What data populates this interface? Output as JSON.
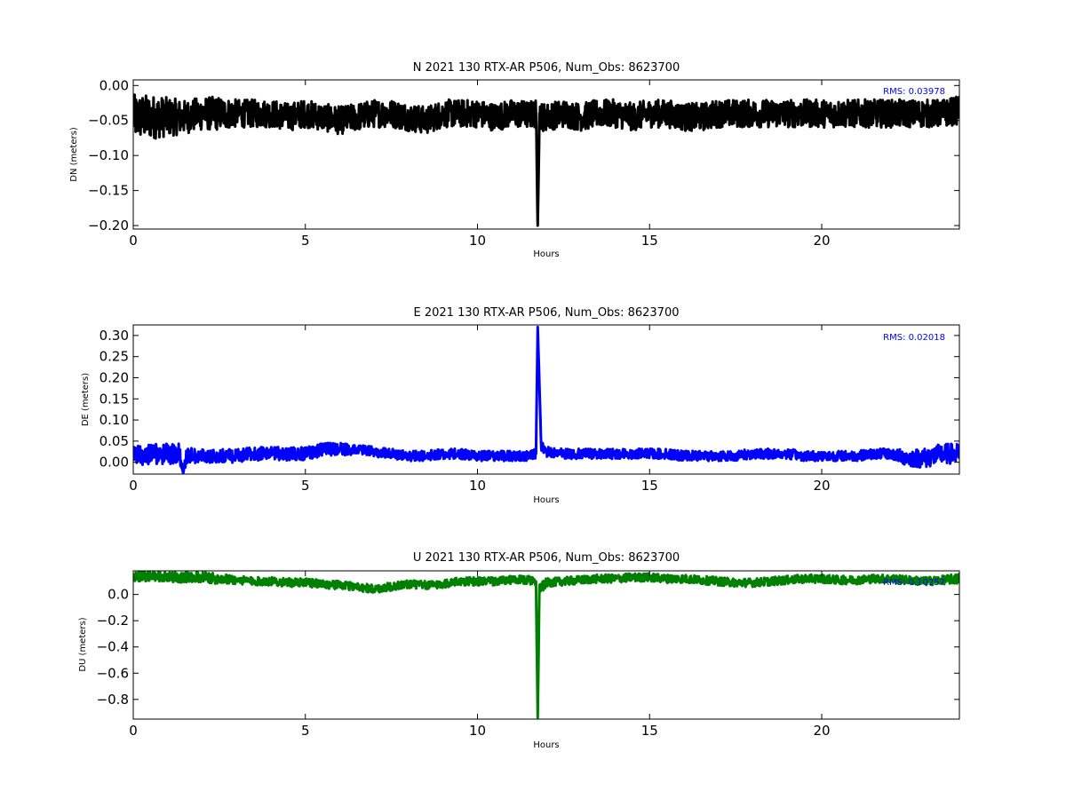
{
  "chart_data": [
    {
      "type": "line",
      "title": "N 2021 130 RTX-AR  P506, Num_Obs: 8623700",
      "xlabel": "Hours",
      "ylabel": "DN (meters)",
      "xlim": [
        0,
        24
      ],
      "ylim": [
        -0.205,
        0.008
      ],
      "xticks": [
        0,
        5,
        10,
        15,
        20
      ],
      "yticks": [
        0.0,
        -0.05,
        -0.1,
        -0.15,
        -0.2
      ],
      "ytick_labels": [
        "0.00",
        "−0.05",
        "−0.10",
        "−0.15",
        "−0.20"
      ],
      "annotation": "RMS:  0.03978",
      "annotation_color": "#0000ff",
      "grid": false,
      "series": [
        {
          "color": "#000000",
          "x": [
            0,
            0.5,
            1,
            1.5,
            2,
            2.5,
            3,
            3.5,
            4,
            4.5,
            5,
            5.5,
            6,
            6.5,
            7,
            7.5,
            8,
            8.5,
            9,
            9.5,
            10,
            10.5,
            11,
            11.5,
            11.7,
            11.75,
            11.8,
            11.9,
            12,
            12.5,
            13,
            13.5,
            14,
            14.5,
            15,
            15.5,
            16,
            16.5,
            17,
            17.5,
            18,
            18.5,
            19,
            19.5,
            20,
            20.5,
            21,
            21.5,
            22,
            22.5,
            23,
            23.5,
            24
          ],
          "y": [
            -0.045,
            -0.045,
            -0.045,
            -0.045,
            -0.04,
            -0.04,
            -0.04,
            -0.04,
            -0.04,
            -0.045,
            -0.04,
            -0.045,
            -0.05,
            -0.045,
            -0.04,
            -0.04,
            -0.045,
            -0.05,
            -0.04,
            -0.04,
            -0.04,
            -0.045,
            -0.04,
            -0.042,
            -0.04,
            -0.2,
            -0.04,
            -0.045,
            -0.045,
            -0.04,
            -0.045,
            -0.04,
            -0.04,
            -0.045,
            -0.04,
            -0.04,
            -0.045,
            -0.045,
            -0.04,
            -0.04,
            -0.04,
            -0.04,
            -0.04,
            -0.04,
            -0.04,
            -0.04,
            -0.04,
            -0.04,
            -0.04,
            -0.04,
            -0.04,
            -0.04,
            -0.035
          ],
          "spread": [
            0.04,
            0.04,
            0.035,
            0.03,
            0.03,
            0.03,
            0.025,
            0.025,
            0.025,
            0.025,
            0.025,
            0.025,
            0.025,
            0.025,
            0.025,
            0.025,
            0.025,
            0.025,
            0.025,
            0.025,
            0.025,
            0.025,
            0.025,
            0.025,
            0.025,
            0.0,
            0.025,
            0.025,
            0.025,
            0.025,
            0.025,
            0.025,
            0.025,
            0.025,
            0.025,
            0.025,
            0.025,
            0.025,
            0.025,
            0.025,
            0.025,
            0.025,
            0.025,
            0.025,
            0.025,
            0.025,
            0.025,
            0.025,
            0.025,
            0.025,
            0.025,
            0.025,
            0.025
          ]
        }
      ]
    },
    {
      "type": "line",
      "title": "E 2021 130 RTX-AR  P506, Num_Obs: 8623700",
      "xlabel": "Hours",
      "ylabel": "DE (meters)",
      "xlim": [
        0,
        24
      ],
      "ylim": [
        -0.028,
        0.325
      ],
      "xticks": [
        0,
        5,
        10,
        15,
        20
      ],
      "yticks": [
        0.3,
        0.25,
        0.2,
        0.15,
        0.1,
        0.05,
        0.0
      ],
      "ytick_labels": [
        "0.30",
        "0.25",
        "0.20",
        "0.15",
        "0.10",
        "0.05",
        "0.00"
      ],
      "annotation": "RMS:  0.02018",
      "annotation_color": "#0000ff",
      "grid": false,
      "series": [
        {
          "color": "#0000ff",
          "x": [
            0,
            0.5,
            1,
            1.35,
            1.45,
            1.55,
            2,
            2.5,
            3,
            3.5,
            4,
            4.5,
            5,
            5.5,
            6,
            6.5,
            7,
            7.5,
            8,
            8.5,
            9,
            9.5,
            10,
            10.5,
            11,
            11.5,
            11.7,
            11.75,
            11.85,
            12,
            12.5,
            13,
            13.5,
            14,
            14.5,
            15,
            15.5,
            16,
            16.5,
            17,
            17.5,
            18,
            18.5,
            19,
            19.5,
            20,
            20.5,
            21,
            21.5,
            22,
            22.5,
            23,
            23.5,
            24
          ],
          "y": [
            0.015,
            0.02,
            0.02,
            0.02,
            -0.025,
            0.015,
            0.015,
            0.015,
            0.015,
            0.02,
            0.02,
            0.02,
            0.02,
            0.03,
            0.03,
            0.03,
            0.025,
            0.02,
            0.015,
            0.015,
            0.02,
            0.02,
            0.015,
            0.015,
            0.015,
            0.015,
            0.02,
            0.32,
            0.04,
            0.025,
            0.02,
            0.02,
            0.02,
            0.02,
            0.02,
            0.02,
            0.02,
            0.015,
            0.015,
            0.015,
            0.015,
            0.02,
            0.02,
            0.02,
            0.015,
            0.015,
            0.015,
            0.015,
            0.02,
            0.02,
            0.01,
            0.01,
            0.02,
            0.02
          ],
          "spread": [
            0.03,
            0.03,
            0.03,
            0.03,
            0.0,
            0.025,
            0.02,
            0.02,
            0.02,
            0.02,
            0.02,
            0.02,
            0.02,
            0.02,
            0.02,
            0.015,
            0.015,
            0.015,
            0.015,
            0.015,
            0.015,
            0.015,
            0.015,
            0.015,
            0.015,
            0.015,
            0.015,
            0.0,
            0.015,
            0.015,
            0.015,
            0.015,
            0.015,
            0.015,
            0.015,
            0.015,
            0.015,
            0.015,
            0.015,
            0.015,
            0.015,
            0.015,
            0.015,
            0.015,
            0.015,
            0.015,
            0.015,
            0.015,
            0.015,
            0.015,
            0.025,
            0.03,
            0.03,
            0.03
          ]
        }
      ]
    },
    {
      "type": "line",
      "title": "U 2021 130 RTX-AR  P506, Num_Obs: 8623700",
      "xlabel": "Hours",
      "ylabel": "DU (meters)",
      "xlim": [
        0,
        24
      ],
      "ylim": [
        -0.95,
        0.18
      ],
      "xticks": [
        0,
        5,
        10,
        15,
        20
      ],
      "yticks": [
        0.0,
        -0.2,
        -0.4,
        -0.6,
        -0.8
      ],
      "ytick_labels": [
        "0.0",
        "−0.2",
        "−0.4",
        "−0.6",
        "−0.8"
      ],
      "annotation": "RMS:  0.10257",
      "annotation_color": "#0000ff",
      "grid": false,
      "series": [
        {
          "color": "#008000",
          "x": [
            0,
            0.5,
            1,
            1.5,
            2,
            2.5,
            3,
            3.5,
            4,
            4.5,
            5,
            5.5,
            6,
            6.5,
            7,
            7.5,
            8,
            8.5,
            9,
            9.5,
            10,
            10.5,
            11,
            11.5,
            11.7,
            11.75,
            11.8,
            11.9,
            12,
            12.5,
            13,
            13.5,
            14,
            14.5,
            15,
            15.5,
            16,
            16.5,
            17,
            17.5,
            18,
            18.5,
            19,
            19.5,
            20,
            20.5,
            21,
            21.5,
            22,
            22.5,
            23,
            23.5,
            24
          ],
          "y": [
            0.14,
            0.14,
            0.13,
            0.13,
            0.13,
            0.12,
            0.11,
            0.1,
            0.1,
            0.09,
            0.09,
            0.08,
            0.07,
            0.06,
            0.04,
            0.06,
            0.08,
            0.07,
            0.08,
            0.1,
            0.1,
            0.1,
            0.11,
            0.11,
            0.1,
            -0.94,
            0.05,
            0.06,
            0.09,
            0.1,
            0.11,
            0.12,
            0.12,
            0.13,
            0.13,
            0.12,
            0.12,
            0.11,
            0.1,
            0.09,
            0.09,
            0.1,
            0.11,
            0.12,
            0.12,
            0.11,
            0.11,
            0.12,
            0.12,
            0.11,
            0.1,
            0.11,
            0.12
          ],
          "spread": [
            0.05,
            0.05,
            0.05,
            0.05,
            0.05,
            0.05,
            0.04,
            0.04,
            0.04,
            0.04,
            0.04,
            0.04,
            0.04,
            0.04,
            0.04,
            0.04,
            0.04,
            0.04,
            0.04,
            0.04,
            0.04,
            0.04,
            0.04,
            0.04,
            0.04,
            0.0,
            0.05,
            0.05,
            0.04,
            0.04,
            0.04,
            0.04,
            0.04,
            0.04,
            0.04,
            0.04,
            0.04,
            0.04,
            0.04,
            0.04,
            0.04,
            0.04,
            0.04,
            0.04,
            0.04,
            0.04,
            0.04,
            0.04,
            0.04,
            0.04,
            0.04,
            0.04,
            0.05
          ]
        }
      ]
    }
  ]
}
